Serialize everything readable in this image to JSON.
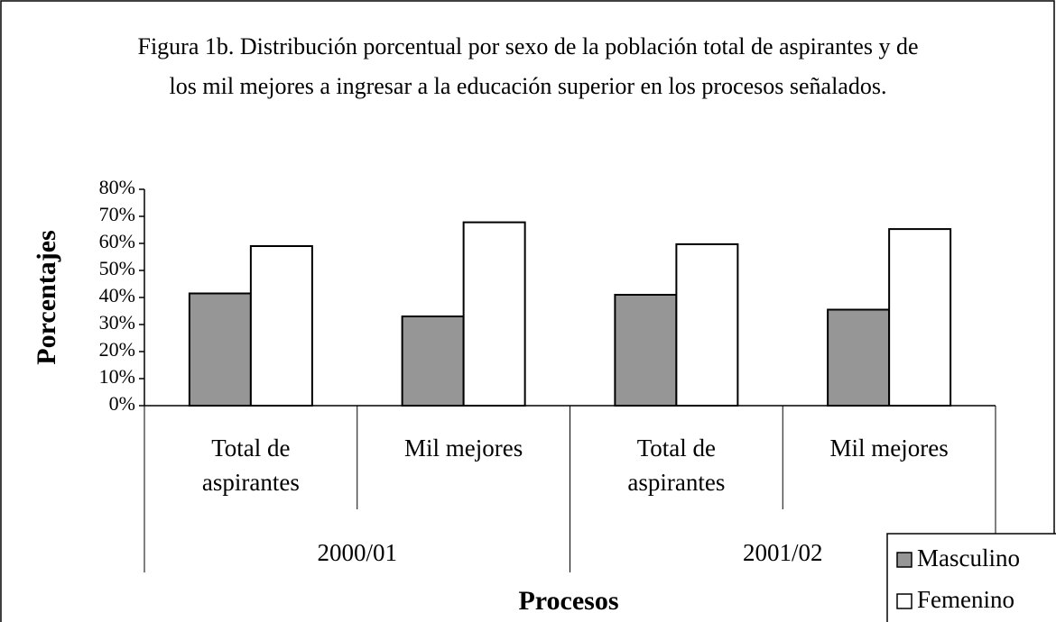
{
  "chart_data": {
    "type": "bar",
    "title": "Figura 1b. Distribución porcentual por sexo de la población total de aspirantes y de los mil mejores a ingresar a la educación superior en los procesos señalados.",
    "categories": [
      "Total de aspirantes",
      "Mil mejores",
      "Total de aspirantes",
      "Mil mejores"
    ],
    "category_groups": [
      "2000/01",
      "2001/02"
    ],
    "series": [
      {
        "name": "Masculino",
        "color": "#969696",
        "values": [
          41.5,
          33,
          41,
          35.5
        ]
      },
      {
        "name": "Femenino",
        "color": "#ffffff",
        "values": [
          59,
          67.8,
          59.7,
          65.3
        ]
      }
    ],
    "ylim": [
      0,
      80
    ],
    "yticks": [
      {
        "value": 0,
        "label": "0%"
      },
      {
        "value": 10,
        "label": "10%"
      },
      {
        "value": 20,
        "label": "20%"
      },
      {
        "value": 30,
        "label": "30%"
      },
      {
        "value": 40,
        "label": "40%"
      },
      {
        "value": 50,
        "label": "50%"
      },
      {
        "value": 60,
        "label": "60%"
      },
      {
        "value": 70,
        "label": "70%"
      },
      {
        "value": 80,
        "label": "80%"
      }
    ],
    "xlabel": "Procesos",
    "ylabel": "Porcentajes",
    "legend": "bottom-right"
  }
}
